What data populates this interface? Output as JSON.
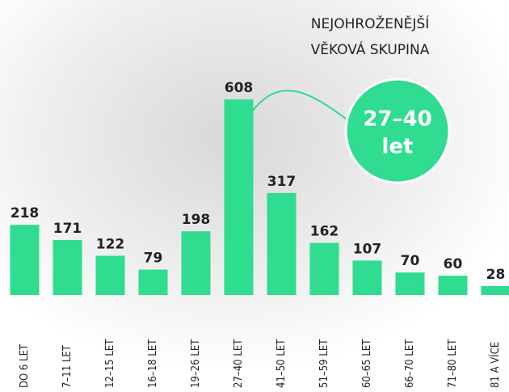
{
  "chart_data": {
    "type": "bar",
    "title": [
      "NEJOHROŽENĚJŠÍ",
      "VĚKOVÁ SKUPINA"
    ],
    "highlight": [
      "27–40",
      "let"
    ],
    "categories": [
      "DO 6 LET",
      "7–11 LET",
      "12–15 LET",
      "16–18 LET",
      "19–26 LET",
      "27–40 LET",
      "41–50 LET",
      "51–59 LET",
      "60–65 LET",
      "66–70 LET",
      "71–80 LET",
      "81 A VÍCE"
    ],
    "values": [
      218,
      171,
      122,
      79,
      198,
      608,
      317,
      162,
      107,
      70,
      60,
      28
    ],
    "color": "#2fdc90"
  }
}
